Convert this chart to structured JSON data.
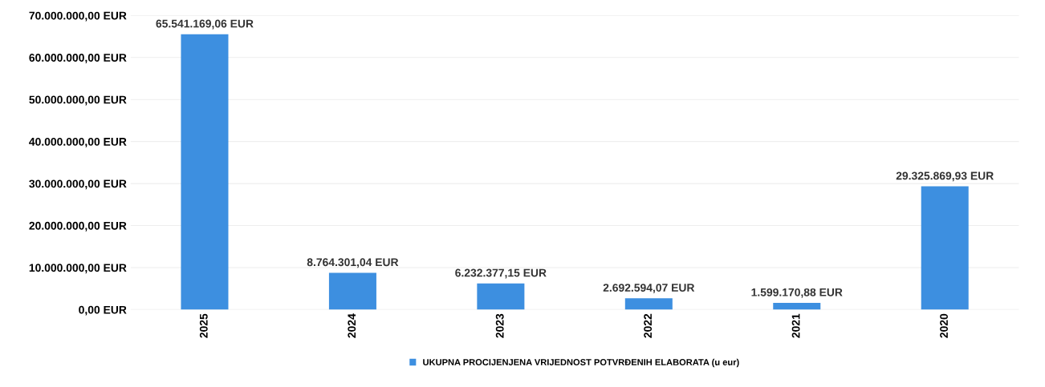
{
  "chart_data": {
    "type": "bar",
    "categories": [
      "2025",
      "2024",
      "2023",
      "2022",
      "2021",
      "2020"
    ],
    "series": [
      {
        "name": "UKUPNA PROCIJENJENA VRIJEDNOST POTVRĐENIH ELABORATA (u eur)",
        "color": "#3d8fe0",
        "values": [
          65541169.06,
          8764301.04,
          6232377.15,
          2692594.07,
          1599170.88,
          29325869.93
        ],
        "value_labels": [
          "65.541.169,06 EUR",
          "8.764.301,04 EUR",
          "6.232.377,15 EUR",
          "2.692.594,07 EUR",
          "1.599.170,88 EUR",
          "29.325.869,93 EUR"
        ]
      }
    ],
    "ylim": [
      0,
      70000000
    ],
    "yticks": [
      {
        "value": 0,
        "label": "0,00 EUR"
      },
      {
        "value": 10000000,
        "label": "10.000.000,00 EUR"
      },
      {
        "value": 20000000,
        "label": "20.000.000,00 EUR"
      },
      {
        "value": 30000000,
        "label": "30.000.000,00 EUR"
      },
      {
        "value": 40000000,
        "label": "40.000.000,00 EUR"
      },
      {
        "value": 50000000,
        "label": "50.000.000,00 EUR"
      },
      {
        "value": 60000000,
        "label": "60.000.000,00 EUR"
      },
      {
        "value": 70000000,
        "label": "70.000.000,00 EUR"
      }
    ],
    "grid": "y",
    "legend": "bottom"
  }
}
